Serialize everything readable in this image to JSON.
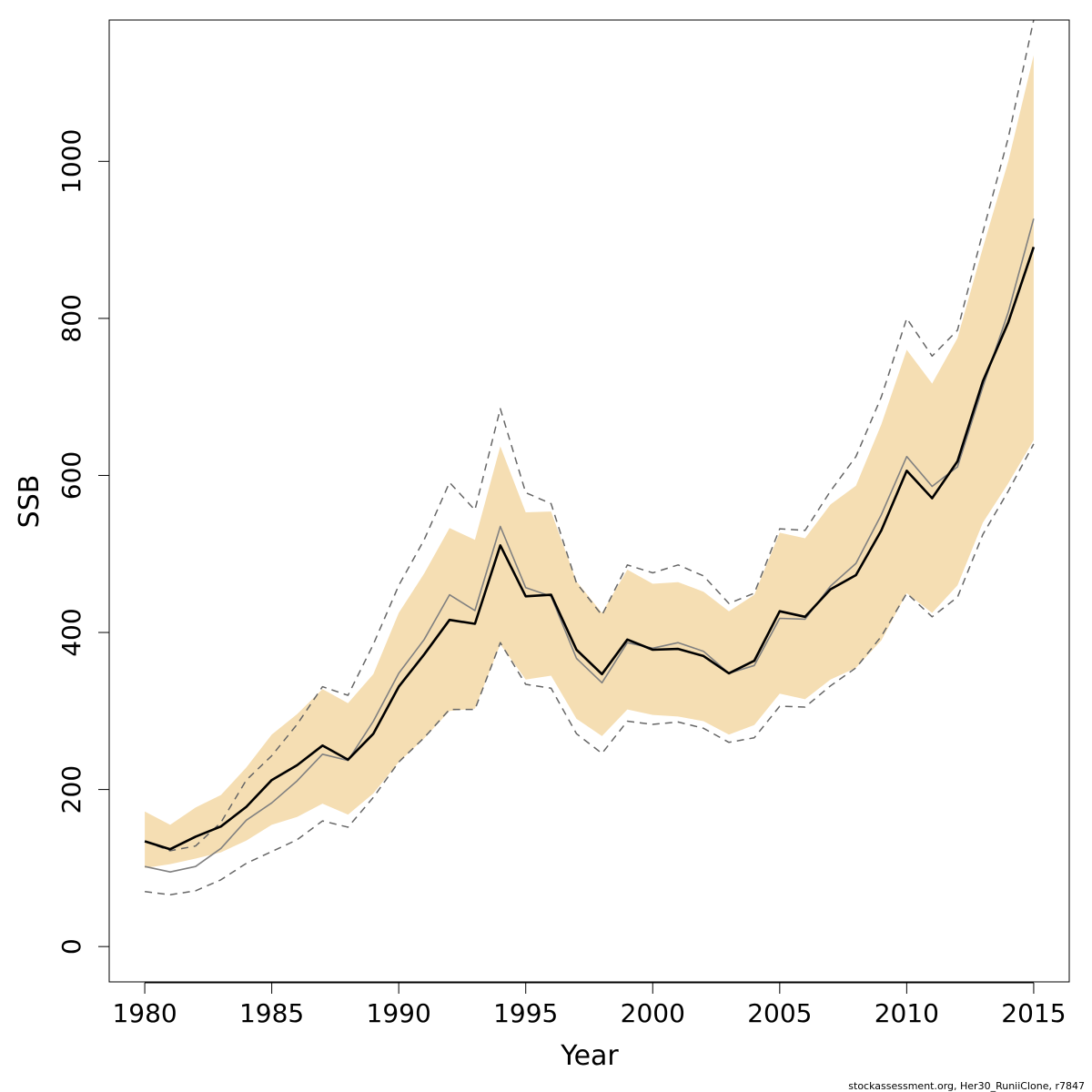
{
  "chart_data": {
    "type": "line",
    "title": "",
    "xlabel": "Year",
    "ylabel": "SSB",
    "xlim": [
      1978.6,
      2016.4
    ],
    "ylim": [
      -45,
      1180
    ],
    "x_ticks": [
      1980,
      1985,
      1990,
      1995,
      2000,
      2005,
      2010,
      2015
    ],
    "y_ticks": [
      0,
      200,
      400,
      600,
      800,
      1000
    ],
    "x": [
      1980,
      1981,
      1982,
      1983,
      1984,
      1985,
      1986,
      1987,
      1988,
      1989,
      1990,
      1991,
      1992,
      1993,
      1994,
      1995,
      1996,
      1997,
      1998,
      1999,
      2000,
      2001,
      2002,
      2003,
      2004,
      2005,
      2006,
      2007,
      2008,
      2009,
      2010,
      2011,
      2012,
      2013,
      2014,
      2015
    ],
    "band": {
      "color": "#f5deb3",
      "lower": [
        100,
        105,
        112,
        120,
        135,
        155,
        165,
        182,
        168,
        195,
        235,
        265,
        300,
        303,
        385,
        340,
        345,
        290,
        268,
        302,
        295,
        293,
        287,
        270,
        282,
        322,
        315,
        340,
        355,
        390,
        450,
        425,
        460,
        540,
        590,
        645
      ],
      "upper": [
        172,
        155,
        177,
        193,
        228,
        270,
        296,
        328,
        310,
        347,
        425,
        475,
        533,
        518,
        637,
        553,
        554,
        465,
        425,
        480,
        462,
        464,
        452,
        427,
        448,
        527,
        520,
        563,
        587,
        665,
        760,
        717,
        775,
        890,
        1000,
        1135
      ]
    },
    "series": [
      {
        "color": "#000000",
        "style": "solid",
        "values": [
          134,
          124,
          140,
          153,
          178,
          212,
          231,
          256,
          238,
          271,
          331,
          372,
          416,
          411,
          511,
          446,
          448,
          378,
          347,
          391,
          378,
          379,
          370,
          348,
          364,
          427,
          420,
          455,
          473,
          530,
          606,
          571,
          618,
          720,
          795,
          891
        ]
      },
      {
        "color": "#808080",
        "style": "solid-thin",
        "values": [
          102,
          95,
          102,
          125,
          161,
          183,
          211,
          245,
          237,
          287,
          348,
          391,
          448,
          428,
          535,
          457,
          446,
          367,
          336,
          387,
          380,
          387,
          376,
          348,
          358,
          418,
          417,
          459,
          488,
          550,
          624,
          586,
          611,
          713,
          808,
          927
        ]
      },
      {
        "color": "#666666",
        "style": "dashed-upper",
        "values": [
          134,
          122,
          128,
          158,
          212,
          243,
          283,
          331,
          320,
          385,
          460,
          518,
          591,
          556,
          685,
          578,
          564,
          463,
          422,
          486,
          476,
          486,
          472,
          437,
          450,
          532,
          530,
          580,
          624,
          700,
          800,
          752,
          785,
          910,
          1030,
          1180
        ]
      },
      {
        "color": "#666666",
        "style": "dashed-lower",
        "values": [
          70,
          66,
          71,
          85,
          106,
          121,
          136,
          160,
          152,
          190,
          235,
          266,
          302,
          302,
          387,
          334,
          329,
          271,
          246,
          287,
          283,
          286,
          278,
          260,
          266,
          306,
          305,
          332,
          355,
          395,
          450,
          420,
          445,
          525,
          580,
          640
        ]
      }
    ],
    "grid": false
  },
  "footer": {
    "note": "stockassessment.org, Her30_RuniiClone, r7847"
  }
}
